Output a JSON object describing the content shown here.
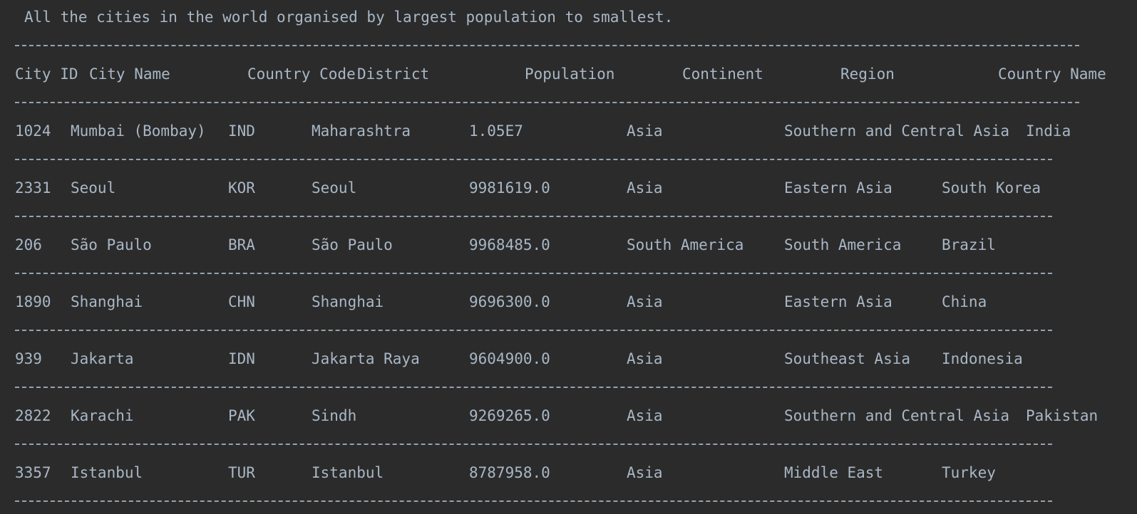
{
  "title": "All the cities in the world organised by largest population to smallest.",
  "columns": [
    "City ID",
    "City Name",
    "Country Code",
    "District",
    "Population",
    "Continent",
    "Region",
    "Country Name"
  ],
  "rows": [
    {
      "id": "1024",
      "name": "Mumbai (Bombay)",
      "code": "IND",
      "district": "Maharashtra",
      "population": "1.05E7",
      "continent": "Asia",
      "region": "Southern and Central Asia",
      "country": "India"
    },
    {
      "id": "2331",
      "name": "Seoul",
      "code": "KOR",
      "district": "Seoul",
      "population": "9981619.0",
      "continent": "Asia",
      "region": "Eastern Asia",
      "country": "South Korea"
    },
    {
      "id": "206",
      "name": "São Paulo",
      "code": "BRA",
      "district": "São Paulo",
      "population": "9968485.0",
      "continent": "South America",
      "region": "South America",
      "country": "Brazil"
    },
    {
      "id": "1890",
      "name": "Shanghai",
      "code": "CHN",
      "district": "Shanghai",
      "population": "9696300.0",
      "continent": "Asia",
      "region": "Eastern Asia",
      "country": "China"
    },
    {
      "id": "939",
      "name": "Jakarta",
      "code": "IDN",
      "district": "Jakarta Raya",
      "population": "9604900.0",
      "continent": "Asia",
      "region": "Southeast Asia",
      "country": "Indonesia"
    },
    {
      "id": "2822",
      "name": "Karachi",
      "code": "PAK",
      "district": "Sindh",
      "population": "9269265.0",
      "continent": "Asia",
      "region": "Southern and Central Asia",
      "country": "Pakistan"
    },
    {
      "id": "3357",
      "name": "Istanbul",
      "code": "TUR",
      "district": "Istanbul",
      "population": "8787958.0",
      "continent": "Asia",
      "region": "Middle East",
      "country": "Turkey"
    }
  ]
}
